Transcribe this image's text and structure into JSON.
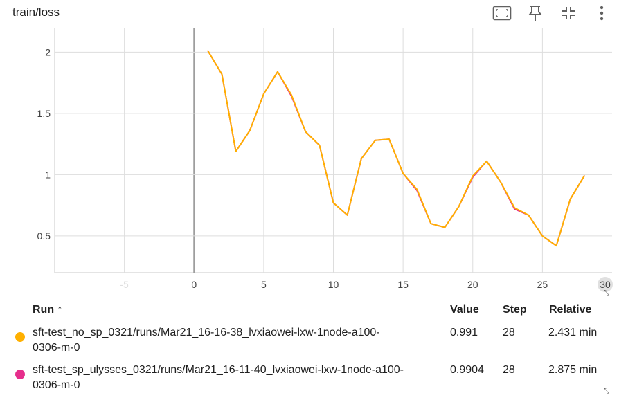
{
  "card": {
    "title": "train/loss"
  },
  "toolbar": {
    "icons": [
      "fit-domain-icon",
      "pin-icon",
      "collapse-icon",
      "more-vert-icon"
    ]
  },
  "chart_data": {
    "type": "line",
    "title": "train/loss",
    "xlabel": "",
    "ylabel": "",
    "xlim": [
      -10,
      30
    ],
    "ylim": [
      0.2,
      2.2
    ],
    "x_ticks": [
      "-5",
      "0",
      "5",
      "10",
      "15",
      "20",
      "25",
      "30"
    ],
    "y_ticks": [
      "0.5",
      "1",
      "1.5",
      "2"
    ],
    "grid": true,
    "series": [
      {
        "name": "sft-test_no_sp_0321/runs/Mar21_16-16-38_lvxiaowei-lxw-1node-a100-0306-m-0",
        "color": "#ffb000",
        "x": [
          1,
          2,
          3,
          4,
          5,
          6,
          7,
          8,
          9,
          10,
          11,
          12,
          13,
          14,
          15,
          16,
          17,
          18,
          19,
          20,
          21,
          22,
          23,
          24,
          25,
          26,
          27,
          28
        ],
        "values": [
          2.01,
          1.82,
          1.19,
          1.36,
          1.66,
          1.84,
          1.65,
          1.35,
          1.24,
          0.77,
          0.67,
          1.13,
          1.28,
          1.29,
          1.01,
          0.88,
          0.6,
          0.57,
          0.74,
          0.99,
          1.11,
          0.94,
          0.73,
          0.67,
          0.5,
          0.42,
          0.8,
          0.99
        ]
      },
      {
        "name": "sft-test_sp_ulysses_0321/runs/Mar21_16-11-40_lvxiaowei-lxw-1node-a100-0306-m-0",
        "color": "#e62e8c",
        "x": [
          1,
          2,
          3,
          4,
          5,
          6,
          7,
          8,
          9,
          10,
          11,
          12,
          13,
          14,
          15,
          16,
          17,
          18,
          19,
          20,
          21,
          22,
          23,
          24,
          25,
          26,
          27,
          28
        ],
        "values": [
          2.01,
          1.82,
          1.19,
          1.36,
          1.66,
          1.84,
          1.64,
          1.35,
          1.24,
          0.77,
          0.67,
          1.13,
          1.28,
          1.29,
          1.01,
          0.87,
          0.6,
          0.57,
          0.74,
          0.98,
          1.11,
          0.94,
          0.72,
          0.67,
          0.5,
          0.42,
          0.8,
          0.99
        ]
      }
    ]
  },
  "table": {
    "headers": {
      "run": "Run ↑",
      "value": "Value",
      "step": "Step",
      "relative": "Relative"
    },
    "rows": [
      {
        "color": "#ffb000",
        "run_line1": "sft-test_no_sp_0321/runs/Mar21_16-16-38_lvxiaowei-lxw-1node-a100-",
        "run_line2": "0306-m-0",
        "value": "0.991",
        "step": "28",
        "relative": "2.431 min"
      },
      {
        "color": "#e62e8c",
        "run_line1": "sft-test_sp_ulysses_0321/runs/Mar21_16-11-40_lvxiaowei-lxw-1node-a100-",
        "run_line2": "0306-m-0",
        "value": "0.9904",
        "step": "28",
        "relative": "2.875 min"
      }
    ]
  }
}
